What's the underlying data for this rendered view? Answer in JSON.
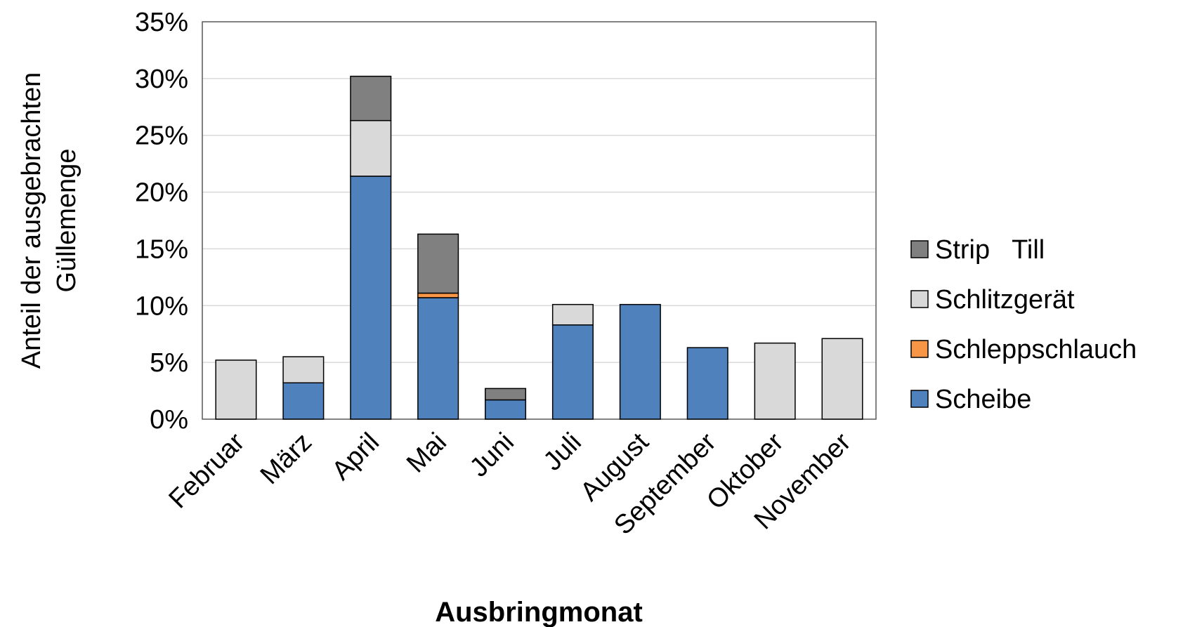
{
  "chart_data": {
    "type": "bar",
    "stacked": true,
    "title": "",
    "xlabel": "Ausbringmonat",
    "ylabel_lines": [
      "Anteil der ausgebrachten",
      "Güllemenge"
    ],
    "ylim": [
      0,
      35
    ],
    "yticks": [
      "0%",
      "5%",
      "10%",
      "15%",
      "20%",
      "25%",
      "30%",
      "35%"
    ],
    "grid": true,
    "legend_position": "right",
    "categories": [
      "Februar",
      "März",
      "April",
      "Mai",
      "Juni",
      "Juli",
      "August",
      "September",
      "Oktober",
      "November"
    ],
    "series": [
      {
        "name": "Scheibe",
        "color": "#4f81bd",
        "values": [
          0,
          3.2,
          21.4,
          10.7,
          1.7,
          8.3,
          10.1,
          6.3,
          0,
          0
        ]
      },
      {
        "name": "Schleppschlauch",
        "color": "#f79646",
        "values": [
          0,
          0,
          0,
          0.4,
          0,
          0,
          0,
          0,
          0,
          0
        ]
      },
      {
        "name": "Schlitzgerät",
        "color": "#d9d9d9",
        "values": [
          5.2,
          2.3,
          4.9,
          0,
          0,
          1.8,
          0,
          0,
          6.7,
          7.1
        ]
      },
      {
        "name": "Strip   Till",
        "color": "#808080",
        "values": [
          0,
          0,
          3.9,
          5.2,
          1.0,
          0,
          0,
          0,
          0,
          0
        ]
      }
    ]
  }
}
